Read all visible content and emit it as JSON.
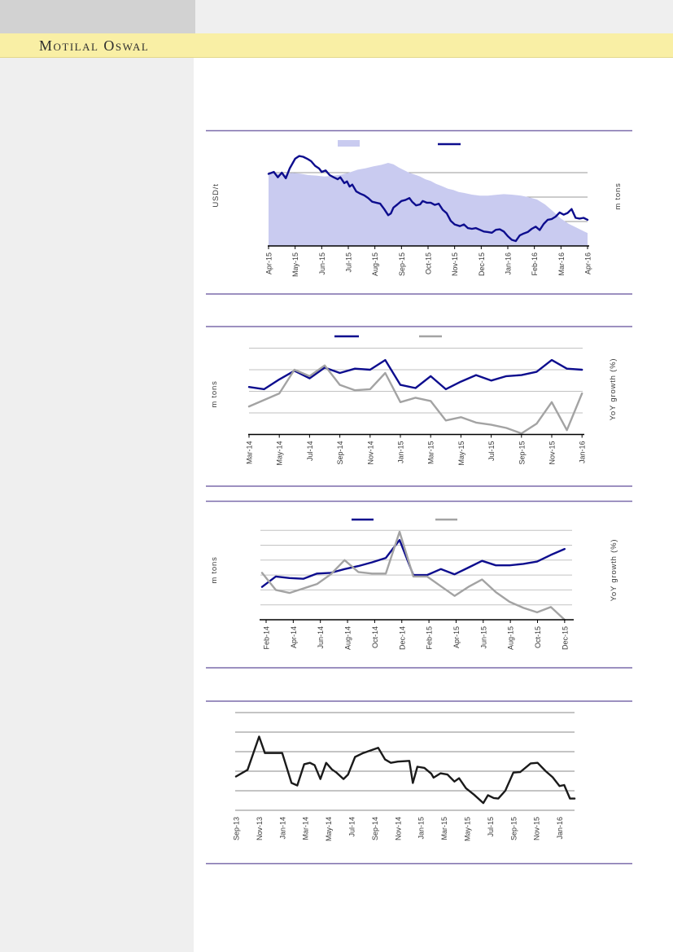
{
  "header": {
    "brand": "Motilal Oswal"
  },
  "colors": {
    "navy_series": "#0d0d8e",
    "gray_series": "#a3a3a3",
    "black_series": "#1a1a1a",
    "area_fill": "#c9cbf0",
    "separator_rule": "#7b6cab",
    "brand_band": "#f9efa5",
    "sidebar_gray": "#efefef",
    "top_block_gray": "#d2d2d2",
    "axis_text": "#3a3a3a"
  },
  "chart_data": [
    {
      "id": "chart-1-price-vs-volume",
      "type": "area",
      "title": "",
      "left_axis_label": "USD/t",
      "right_axis_label": "m tons",
      "y_axis_tick_labels": "none visible",
      "gridlines_at": [
        1,
        2,
        3
      ],
      "legend": [
        {
          "swatch": "area-lavender",
          "label": ""
        },
        {
          "swatch": "line-navy",
          "label": ""
        }
      ],
      "x_tick_labels": [
        "Apr-15",
        "May-15",
        "Jun-15",
        "Jul-15",
        "Aug-15",
        "Sep-15",
        "Oct-15",
        "Nov-15",
        "Dec-15",
        "Jan-16",
        "Feb-16",
        "Mar-16",
        "Apr-16"
      ],
      "x_unit": "months since Apr-15",
      "y_unit": "relative gridline units (axis unlabeled)",
      "area_series": {
        "name": "",
        "points": [
          [
            0,
            3.0
          ],
          [
            0.3,
            2.96
          ],
          [
            0.6,
            2.92
          ],
          [
            0.9,
            2.99
          ],
          [
            1.2,
            2.96
          ],
          [
            1.5,
            2.9
          ],
          [
            1.8,
            2.88
          ],
          [
            2.1,
            2.84
          ],
          [
            2.45,
            2.88
          ],
          [
            2.75,
            2.92
          ],
          [
            3.05,
            3.01
          ],
          [
            3.35,
            3.12
          ],
          [
            3.65,
            3.18
          ],
          [
            3.95,
            3.26
          ],
          [
            4.25,
            3.32
          ],
          [
            4.5,
            3.4
          ],
          [
            4.7,
            3.34
          ],
          [
            4.9,
            3.21
          ],
          [
            5.1,
            3.1
          ],
          [
            5.3,
            2.99
          ],
          [
            5.5,
            2.92
          ],
          [
            5.7,
            2.84
          ],
          [
            5.9,
            2.73
          ],
          [
            6.1,
            2.66
          ],
          [
            6.3,
            2.54
          ],
          [
            6.5,
            2.46
          ],
          [
            6.75,
            2.34
          ],
          [
            6.95,
            2.29
          ],
          [
            7.15,
            2.21
          ],
          [
            7.35,
            2.17
          ],
          [
            7.65,
            2.1
          ],
          [
            7.95,
            2.06
          ],
          [
            8.25,
            2.06
          ],
          [
            8.55,
            2.09
          ],
          [
            8.85,
            2.12
          ],
          [
            9.15,
            2.1
          ],
          [
            9.5,
            2.06
          ],
          [
            9.8,
            1.99
          ],
          [
            10.1,
            1.9
          ],
          [
            10.4,
            1.7
          ],
          [
            10.7,
            1.42
          ],
          [
            11.0,
            1.12
          ],
          [
            11.3,
            0.9
          ],
          [
            11.6,
            0.74
          ],
          [
            11.9,
            0.58
          ],
          [
            12,
            0.53
          ]
        ]
      },
      "line_series": {
        "name": "",
        "points": [
          [
            0,
            2.95
          ],
          [
            0.2,
            3.03
          ],
          [
            0.35,
            2.81
          ],
          [
            0.5,
            3.0
          ],
          [
            0.65,
            2.77
          ],
          [
            0.8,
            3.18
          ],
          [
            1.0,
            3.57
          ],
          [
            1.15,
            3.68
          ],
          [
            1.3,
            3.65
          ],
          [
            1.45,
            3.57
          ],
          [
            1.6,
            3.47
          ],
          [
            1.75,
            3.28
          ],
          [
            1.9,
            3.17
          ],
          [
            2.0,
            3.03
          ],
          [
            2.15,
            3.09
          ],
          [
            2.3,
            2.9
          ],
          [
            2.45,
            2.81
          ],
          [
            2.6,
            2.73
          ],
          [
            2.7,
            2.81
          ],
          [
            2.85,
            2.57
          ],
          [
            2.95,
            2.64
          ],
          [
            3.05,
            2.43
          ],
          [
            3.15,
            2.51
          ],
          [
            3.3,
            2.23
          ],
          [
            3.45,
            2.14
          ],
          [
            3.6,
            2.07
          ],
          [
            3.75,
            1.96
          ],
          [
            3.9,
            1.81
          ],
          [
            4.05,
            1.77
          ],
          [
            4.2,
            1.73
          ],
          [
            4.35,
            1.51
          ],
          [
            4.5,
            1.26
          ],
          [
            4.6,
            1.33
          ],
          [
            4.7,
            1.57
          ],
          [
            4.85,
            1.7
          ],
          [
            5.0,
            1.84
          ],
          [
            5.15,
            1.88
          ],
          [
            5.3,
            1.96
          ],
          [
            5.4,
            1.81
          ],
          [
            5.55,
            1.66
          ],
          [
            5.7,
            1.7
          ],
          [
            5.8,
            1.84
          ],
          [
            5.95,
            1.77
          ],
          [
            6.1,
            1.77
          ],
          [
            6.25,
            1.68
          ],
          [
            6.4,
            1.73
          ],
          [
            6.55,
            1.48
          ],
          [
            6.7,
            1.34
          ],
          [
            6.85,
            1.03
          ],
          [
            7.0,
            0.88
          ],
          [
            7.2,
            0.81
          ],
          [
            7.35,
            0.88
          ],
          [
            7.5,
            0.73
          ],
          [
            7.65,
            0.7
          ],
          [
            7.8,
            0.73
          ],
          [
            7.95,
            0.66
          ],
          [
            8.1,
            0.59
          ],
          [
            8.25,
            0.57
          ],
          [
            8.4,
            0.54
          ],
          [
            8.55,
            0.66
          ],
          [
            8.7,
            0.68
          ],
          [
            8.85,
            0.59
          ],
          [
            9.0,
            0.4
          ],
          [
            9.15,
            0.25
          ],
          [
            9.3,
            0.2
          ],
          [
            9.45,
            0.43
          ],
          [
            9.6,
            0.51
          ],
          [
            9.75,
            0.57
          ],
          [
            9.9,
            0.7
          ],
          [
            10.05,
            0.79
          ],
          [
            10.2,
            0.65
          ],
          [
            10.35,
            0.9
          ],
          [
            10.5,
            1.07
          ],
          [
            10.65,
            1.1
          ],
          [
            10.8,
            1.2
          ],
          [
            10.95,
            1.37
          ],
          [
            11.1,
            1.28
          ],
          [
            11.25,
            1.35
          ],
          [
            11.4,
            1.51
          ],
          [
            11.55,
            1.15
          ],
          [
            11.7,
            1.12
          ],
          [
            11.85,
            1.15
          ],
          [
            12,
            1.07
          ]
        ]
      }
    },
    {
      "id": "chart-2-volume-yoy",
      "type": "line",
      "title": "",
      "left_axis_label": "m tons",
      "right_axis_label": "YoY growth (%)",
      "y_axis_tick_labels": "none visible",
      "gridlines_at": [
        1,
        2,
        3,
        4
      ],
      "legend": [
        {
          "swatch": "line-navy",
          "label": ""
        },
        {
          "swatch": "line-gray",
          "label": ""
        }
      ],
      "months": [
        "Mar-14",
        "Apr-14",
        "May-14",
        "Jun-14",
        "Jul-14",
        "Aug-14",
        "Sep-14",
        "Oct-14",
        "Nov-14",
        "Dec-14",
        "Jan-15",
        "Feb-15",
        "Mar-15",
        "Apr-15",
        "May-15",
        "Jun-15",
        "Jul-15",
        "Aug-15",
        "Sep-15",
        "Oct-15",
        "Nov-15",
        "Dec-15",
        "Jan-16"
      ],
      "x_tick_labels": [
        "Mar-14",
        "May-14",
        "Jul-14",
        "Sep-14",
        "Nov-14",
        "Jan-15",
        "Mar-15",
        "May-15",
        "Jul-15",
        "Sep-15",
        "Nov-15",
        "Jan-16"
      ],
      "series": [
        {
          "name": "navy",
          "values": [
            2.2,
            2.1,
            2.55,
            2.95,
            2.6,
            3.1,
            2.85,
            3.05,
            3.0,
            3.45,
            2.3,
            2.15,
            2.7,
            2.1,
            2.45,
            2.75,
            2.5,
            2.7,
            2.75,
            2.9,
            3.45,
            3.05,
            3.0
          ]
        },
        {
          "name": "gray",
          "values": [
            1.3,
            1.6,
            1.9,
            3.0,
            2.7,
            3.2,
            2.3,
            2.05,
            2.1,
            2.85,
            1.5,
            1.7,
            1.55,
            0.65,
            0.8,
            0.55,
            0.45,
            0.3,
            0.05,
            0.5,
            1.5,
            0.2,
            1.9
          ]
        }
      ]
    },
    {
      "id": "chart-3-volume-yoy",
      "type": "line",
      "title": "",
      "left_axis_label": "m tons",
      "right_axis_label": "YoY growth (%)",
      "y_axis_tick_labels": "none visible",
      "gridlines_at": [
        1,
        2,
        3,
        4,
        5,
        6
      ],
      "legend": [
        {
          "swatch": "line-navy",
          "label": ""
        },
        {
          "swatch": "line-gray",
          "label": ""
        }
      ],
      "months": [
        "Feb-14",
        "Mar-14",
        "Apr-14",
        "May-14",
        "Jun-14",
        "Jul-14",
        "Aug-14",
        "Sep-14",
        "Oct-14",
        "Nov-14",
        "Dec-14",
        "Jan-15",
        "Feb-15",
        "Mar-15",
        "Apr-15",
        "May-15",
        "Jun-15",
        "Jul-15",
        "Aug-15",
        "Sep-15",
        "Oct-15",
        "Nov-15",
        "Dec-15"
      ],
      "x_tick_labels": [
        "Feb-14",
        "Apr-14",
        "Jun-14",
        "Aug-14",
        "Oct-14",
        "Dec-14",
        "Feb-15",
        "Apr-15",
        "Jun-15",
        "Aug-15",
        "Oct-15",
        "Dec-15"
      ],
      "series": [
        {
          "name": "navy",
          "values": [
            2.2,
            2.9,
            2.8,
            2.75,
            3.1,
            3.15,
            3.4,
            3.6,
            3.85,
            4.15,
            5.35,
            3.0,
            3.0,
            3.4,
            3.05,
            3.5,
            3.95,
            3.65,
            3.65,
            3.75,
            3.9,
            4.35,
            4.75
          ]
        },
        {
          "name": "gray",
          "values": [
            3.15,
            2.0,
            1.8,
            2.1,
            2.4,
            3.05,
            4.0,
            3.2,
            3.1,
            3.1,
            5.9,
            2.9,
            2.9,
            2.25,
            1.6,
            2.2,
            2.7,
            1.85,
            1.2,
            0.8,
            0.5,
            0.85,
            0.0
          ]
        }
      ]
    },
    {
      "id": "chart-4-trend",
      "type": "line",
      "title": "",
      "left_axis_label": "",
      "right_axis_label": "",
      "y_axis_tick_labels": "none visible",
      "gridlines_at": [
        0,
        1,
        2,
        3,
        4,
        5
      ],
      "legend": [],
      "x_tick_labels": [
        "Sep-13",
        "Nov-13",
        "Jan-14",
        "Mar-14",
        "May-14",
        "Jul-14",
        "Sep-14",
        "Nov-14",
        "Jan-15",
        "Mar-15",
        "May-15",
        "Jul-15",
        "Sep-15",
        "Nov-15",
        "Jan-16"
      ],
      "x_unit": "months since Sep-13",
      "series": [
        {
          "name": "black",
          "points": [
            [
              0,
              1.73
            ],
            [
              1,
              2.07
            ],
            [
              2,
              3.77
            ],
            [
              2.5,
              2.93
            ],
            [
              4,
              2.93
            ],
            [
              4.8,
              1.4
            ],
            [
              5.3,
              1.27
            ],
            [
              5.9,
              2.36
            ],
            [
              6.4,
              2.43
            ],
            [
              6.8,
              2.31
            ],
            [
              7.3,
              1.6
            ],
            [
              7.8,
              2.43
            ],
            [
              8.3,
              2.09
            ],
            [
              8.7,
              1.93
            ],
            [
              9.3,
              1.6
            ],
            [
              9.7,
              1.83
            ],
            [
              10.3,
              2.73
            ],
            [
              11,
              2.93
            ],
            [
              11.7,
              3.07
            ],
            [
              12.3,
              3.2
            ],
            [
              12.9,
              2.6
            ],
            [
              13.4,
              2.43
            ],
            [
              14,
              2.49
            ],
            [
              15,
              2.53
            ],
            [
              15.3,
              1.4
            ],
            [
              15.7,
              2.23
            ],
            [
              16.3,
              2.17
            ],
            [
              16.9,
              1.87
            ],
            [
              17.1,
              1.67
            ],
            [
              17.7,
              1.89
            ],
            [
              18.3,
              1.83
            ],
            [
              18.9,
              1.47
            ],
            [
              19.3,
              1.64
            ],
            [
              19.9,
              1.13
            ],
            [
              20.6,
              0.8
            ],
            [
              21.4,
              0.37
            ],
            [
              21.8,
              0.77
            ],
            [
              22.3,
              0.63
            ],
            [
              22.7,
              0.6
            ],
            [
              23.3,
              1.0
            ],
            [
              24,
              1.93
            ],
            [
              24.6,
              1.96
            ],
            [
              25.5,
              2.4
            ],
            [
              26.1,
              2.43
            ],
            [
              26.8,
              2.0
            ],
            [
              27.4,
              1.69
            ],
            [
              28,
              1.24
            ],
            [
              28.4,
              1.29
            ],
            [
              28.9,
              0.6
            ],
            [
              29.3,
              0.6
            ]
          ]
        }
      ]
    }
  ]
}
